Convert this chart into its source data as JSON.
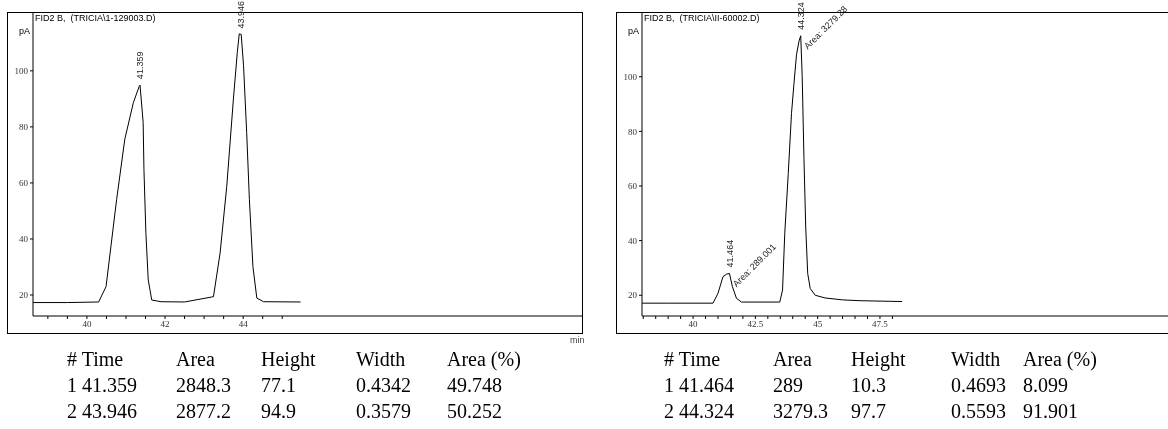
{
  "chart_data": [
    {
      "type": "line",
      "title": "FID2 B,  (TRICIA\\1-129003.D)",
      "ylabel": "pA",
      "xlabel": "min",
      "marker": "none",
      "line_style": "solid",
      "xlim": [
        38.62,
        52.7
      ],
      "ylim": [
        12.5,
        121
      ],
      "xticks": [
        {
          "value": 39,
          "label": null
        },
        {
          "value": 39.5,
          "label": null
        },
        40,
        {
          "value": 40.5,
          "label": null
        },
        {
          "value": 41,
          "label": null
        },
        {
          "value": 41.5,
          "label": null
        },
        42,
        {
          "value": 42.5,
          "label": null
        },
        {
          "value": 43,
          "label": null
        },
        {
          "value": 43.5,
          "label": null
        },
        44,
        {
          "value": 44.5,
          "label": null
        },
        {
          "value": 45,
          "label": null
        }
      ],
      "yticks": [
        20,
        40,
        60,
        80,
        100
      ],
      "series": [
        {
          "color": "#000000",
          "x": [
            38.62,
            39.5,
            40.3,
            40.49,
            40.76,
            40.97,
            41.19,
            41.34,
            41.36,
            41.44,
            41.46,
            41.51,
            41.57,
            41.66,
            41.9,
            42.5,
            43.24,
            43.41,
            43.58,
            43.75,
            43.85,
            43.9,
            43.95,
            44.01,
            44.09,
            44.16,
            44.25,
            44.35,
            44.52,
            45.46
          ],
          "values": [
            17.3,
            17.3,
            17.5,
            23,
            54,
            75.6,
            88.7,
            94.5,
            94.9,
            81.6,
            64.8,
            42,
            25.4,
            18.2,
            17.6,
            17.5,
            19.4,
            35,
            58.8,
            89.9,
            106.6,
            113.2,
            113,
            101.8,
            78,
            54,
            30.1,
            18.9,
            17.6,
            17.5
          ]
        }
      ],
      "annotations": [
        {
          "text": "41.359",
          "x": 41.359,
          "y": 94.9
        },
        {
          "text": "43.946",
          "x": 43.946,
          "y": 113
        },
        "# Time\tArea\tHeight\tWidth\tArea (%)",
        "1 41.359\t2848.3\t77.1\t0.4342\t49.748",
        "2 43.946\t2877.2\t94.9\t0.3579\t50.252"
      ]
    },
    {
      "type": "line",
      "title": "FID2 B,  (TRICIA\\II-60002.D)",
      "ylabel": "pA",
      "marker": "none",
      "line_style": "solid",
      "xlim": [
        37.95,
        59.06
      ],
      "ylim": [
        12.4,
        123.7
      ],
      "xticks": [
        {
          "value": 38,
          "label": null
        },
        {
          "value": 38.5,
          "label": null
        },
        {
          "value": 39,
          "label": null
        },
        {
          "value": 39.5,
          "label": null
        },
        40,
        {
          "value": 40.5,
          "label": null
        },
        {
          "value": 41,
          "label": null
        },
        {
          "value": 41.5,
          "label": null
        },
        {
          "value": 42,
          "label": null
        },
        42.5,
        {
          "value": 43,
          "label": null
        },
        {
          "value": 43.5,
          "label": null
        },
        {
          "value": 44,
          "label": null
        },
        {
          "value": 44.5,
          "label": null
        },
        45,
        {
          "value": 45.5,
          "label": null
        },
        {
          "value": 46,
          "label": null
        },
        {
          "value": 46.5,
          "label": null
        },
        {
          "value": 47,
          "label": null
        },
        47.5,
        {
          "value": 48,
          "label": null
        }
      ],
      "yticks": [
        20,
        40,
        60,
        80,
        100
      ],
      "series": [
        {
          "color": "#000000",
          "x": [
            37.95,
            39,
            40.8,
            41.0,
            41.2,
            41.34,
            41.46,
            41.58,
            41.74,
            41.94,
            43.48,
            43.59,
            43.68,
            43.82,
            43.95,
            44.05,
            44.15,
            44.25,
            44.32,
            44.38,
            44.45,
            44.52,
            44.6,
            44.7,
            44.9,
            45.3,
            46,
            46.7,
            48.37
          ],
          "values": [
            17.1,
            17.1,
            17.1,
            20.7,
            26.8,
            27.7,
            28,
            23.1,
            18.9,
            17.5,
            17.5,
            21.9,
            42.7,
            64.6,
            86.6,
            97.6,
            108,
            113,
            115,
            100,
            70,
            45,
            28,
            22.5,
            20,
            19,
            18.3,
            18,
            17.7
          ]
        }
      ],
      "annotations": [
        {
          "text": "41.464",
          "x": 41.464,
          "y": 28
        },
        {
          "text": "Area: 289.001",
          "x": 41.464,
          "y": 28
        },
        {
          "text": "44.324",
          "x": 44.324,
          "y": 115
        },
        {
          "text": "Area: 3279.28",
          "x": 44.324,
          "y": 115
        },
        "# Time\tArea\tHeight\tWidth\tArea (%)",
        "1 41.464\t289\t10.3\t0.4693\t8.099",
        "2 44.324\t3279.3\t97.7\t0.5593\t91.901"
      ]
    }
  ]
}
